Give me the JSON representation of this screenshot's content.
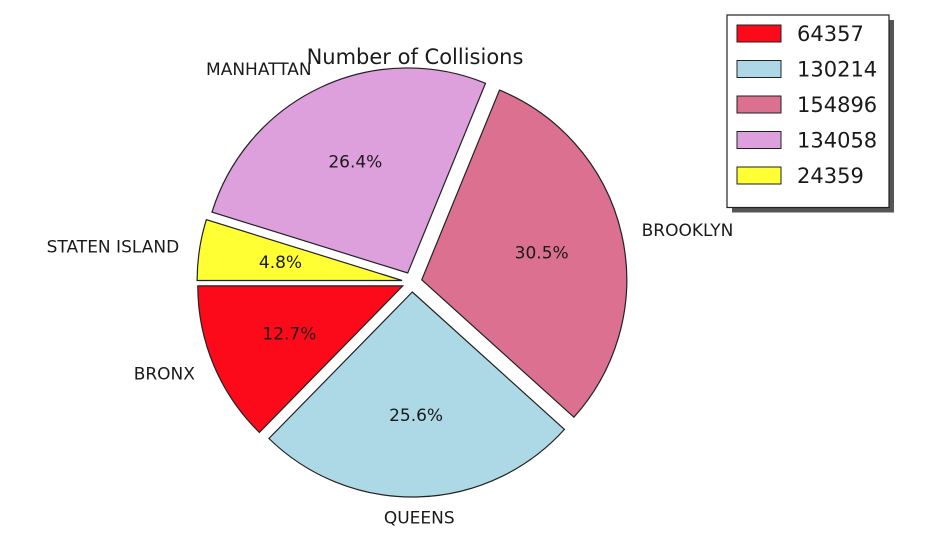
{
  "chart_data": {
    "type": "pie",
    "title": "Number of Collisions",
    "slices": [
      {
        "label": "BRONX",
        "value": 64357,
        "pct": "12.7%",
        "color": "#fc0a1a"
      },
      {
        "label": "QUEENS",
        "value": 130214,
        "pct": "25.6%",
        "color": "#add8e6"
      },
      {
        "label": "BROOKLYN",
        "value": 154896,
        "pct": "30.5%",
        "color": "#db7090"
      },
      {
        "label": "MANHATTAN",
        "value": 134058,
        "pct": "26.4%",
        "color": "#dda0dd"
      },
      {
        "label": "STATEN ISLAND",
        "value": 24359,
        "pct": "4.8%",
        "color": "#ffff33"
      }
    ],
    "exploded": true,
    "legend": {
      "position": "top-right",
      "entries": [
        "64357",
        "130214",
        "154896",
        "134058",
        "24359"
      ]
    }
  }
}
